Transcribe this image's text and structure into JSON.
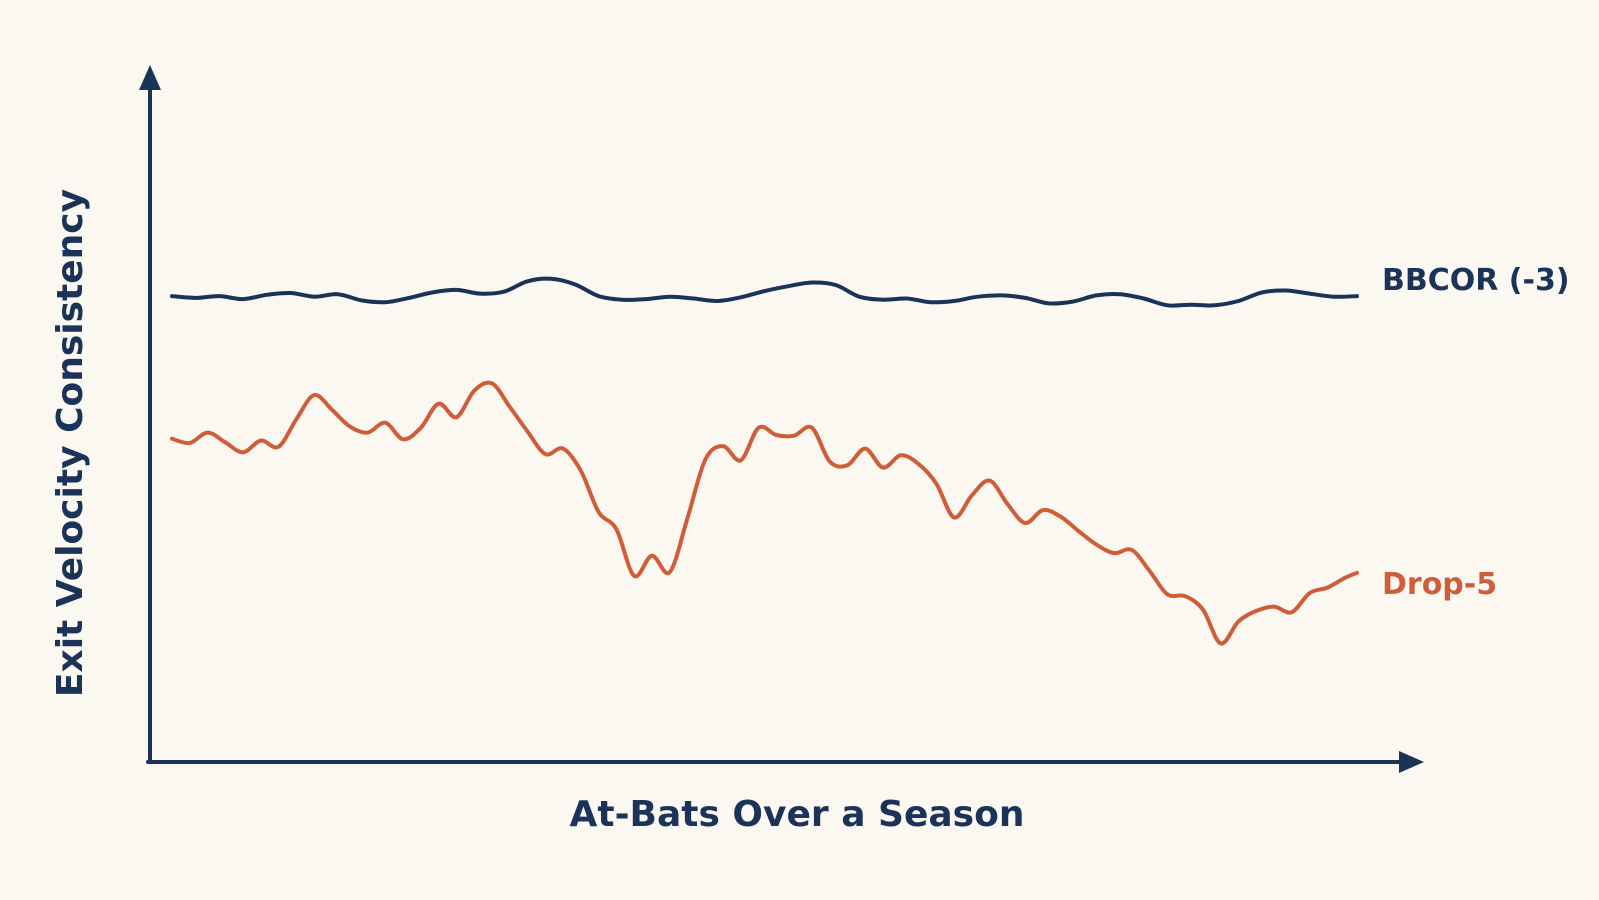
{
  "colors": {
    "background": "#fbf8f1",
    "axis": "#1b3358",
    "bbcor": "#1b3358",
    "drop5": "#cf5d39"
  },
  "chart_data": {
    "type": "line",
    "title": "",
    "xlabel": "At-Bats Over a Season",
    "ylabel": "Exit Velocity Consistency",
    "xlim": [
      0,
      100
    ],
    "ylim": [
      0,
      100
    ],
    "grid": false,
    "axis_ticks": false,
    "legend": "end-of-line labels",
    "series": [
      {
        "name": "BBCOR (-3)",
        "color": "#1b3358",
        "x": [
          0,
          2,
          4,
          6,
          8,
          10,
          12,
          14,
          16,
          18,
          20,
          22,
          24,
          26,
          28,
          30,
          32,
          34,
          36,
          38,
          40,
          42,
          44,
          46,
          48,
          50,
          52,
          54,
          56,
          58,
          60,
          62,
          64,
          66,
          68,
          70,
          72,
          74,
          76,
          78,
          80,
          82,
          84,
          86,
          88,
          90,
          92,
          94,
          96,
          98,
          100
        ],
        "y": [
          73.0,
          72.7,
          73.0,
          72.5,
          73.2,
          73.5,
          72.9,
          73.3,
          72.3,
          72.0,
          72.7,
          73.6,
          74.0,
          73.4,
          73.7,
          75.4,
          75.8,
          74.9,
          73.0,
          72.4,
          72.5,
          72.9,
          72.6,
          72.2,
          72.8,
          73.8,
          74.6,
          75.2,
          74.8,
          72.9,
          72.4,
          72.6,
          72.0,
          72.2,
          72.9,
          73.1,
          72.7,
          71.8,
          72.1,
          73.1,
          73.3,
          72.6,
          71.5,
          71.6,
          71.5,
          72.2,
          73.6,
          73.9,
          73.4,
          72.9,
          73.0
        ]
      },
      {
        "name": "Drop-5",
        "color": "#cf5d39",
        "x": [
          0,
          1.5,
          3,
          4.5,
          6,
          7.5,
          9,
          10.5,
          12,
          13.5,
          15,
          16.5,
          18,
          19.5,
          21,
          22.5,
          24,
          25.5,
          27,
          28.5,
          30,
          31.5,
          33,
          34.5,
          36,
          37.5,
          39,
          40.5,
          42,
          43.5,
          45,
          46.5,
          48,
          49.5,
          51,
          52.5,
          54,
          55.5,
          57,
          58.5,
          60,
          61.5,
          63,
          64.5,
          66,
          67.5,
          69,
          70.5,
          72,
          73.5,
          75,
          76.5,
          78,
          79.5,
          81,
          82.5,
          84,
          85.5,
          87,
          88.5,
          90,
          91.5,
          93,
          94.5,
          96,
          97.5,
          99,
          100
        ],
        "y": [
          49.8,
          49.1,
          50.8,
          49.2,
          47.6,
          49.5,
          48.5,
          53.0,
          56.9,
          54.5,
          51.8,
          50.8,
          52.4,
          49.7,
          51.6,
          55.5,
          53.3,
          57.6,
          58.8,
          55.0,
          51.0,
          47.3,
          48.2,
          44.6,
          37.9,
          35.1,
          27.5,
          30.8,
          28.1,
          36.9,
          46.4,
          48.6,
          46.3,
          51.6,
          50.4,
          50.3,
          51.6,
          46.1,
          45.5,
          48.2,
          45.1,
          47.1,
          45.7,
          42.5,
          37.0,
          40.6,
          43.0,
          39.2,
          36.1,
          38.2,
          37.1,
          34.8,
          32.6,
          31.2,
          31.7,
          28.3,
          24.5,
          24.2,
          22.0,
          16.5,
          20.1,
          21.8,
          22.5,
          21.6,
          24.7,
          25.6,
          27.2,
          28.0
        ]
      }
    ]
  }
}
